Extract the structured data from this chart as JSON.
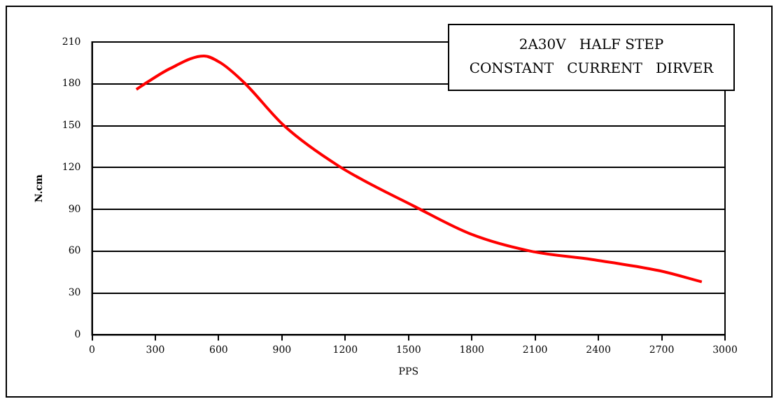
{
  "chart_data": {
    "type": "line",
    "title": "2A30V   HALF STEP",
    "subtitle": "CONSTANT   CURRENT   DIRVER",
    "xlabel": "PPS",
    "ylabel": "N.cm",
    "x": [
      210,
      260,
      370,
      530,
      610,
      720,
      910,
      1170,
      1530,
      1800,
      2080,
      2370,
      2690,
      2890
    ],
    "series": [
      {
        "color": "#ff0000",
        "values": [
          176,
          181,
          191,
          200,
          195,
          181,
          150,
          121,
          92,
          72,
          60,
          54,
          46,
          38
        ]
      }
    ],
    "xlim": [
      0,
      3000
    ],
    "xticks": [
      0,
      300,
      600,
      900,
      1200,
      1500,
      1800,
      2100,
      2400,
      2700,
      3000
    ],
    "ylim": [
      0,
      210
    ],
    "yticks": [
      0,
      30,
      60,
      90,
      120,
      150,
      180,
      210
    ],
    "grid": "y",
    "legend": false,
    "marker": "none",
    "line_style": "solid"
  }
}
